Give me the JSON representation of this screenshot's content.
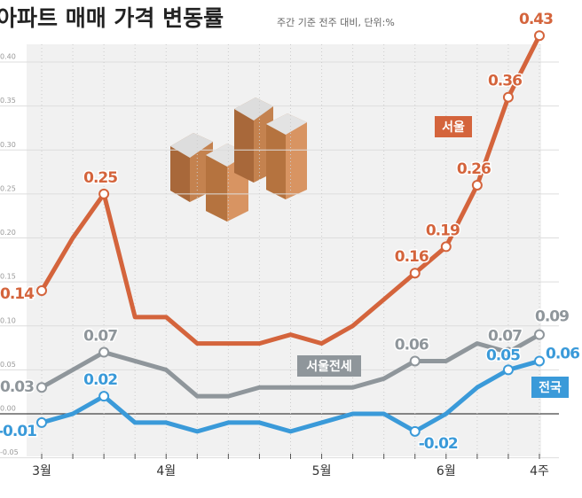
{
  "chart_data": {
    "type": "line",
    "title": "아파트 매매 가격 변동률",
    "subtitle": "주간 기준 전주 대비, 단위:%",
    "categories": [
      "3월",
      null,
      null,
      null,
      "4월",
      null,
      null,
      null,
      null,
      "5월",
      null,
      null,
      null,
      "6월",
      null,
      null,
      "4주"
    ],
    "ylim": [
      -0.05,
      0.43
    ],
    "yticks": [
      {
        "value": 0.4,
        "label": "0.40"
      },
      {
        "value": 0.35,
        "label": "0.35"
      },
      {
        "value": 0.3,
        "label": "0.30"
      },
      {
        "value": 0.25,
        "label": "0.25"
      },
      {
        "value": 0.2,
        "label": "0.20"
      },
      {
        "value": 0.15,
        "label": "0.15"
      },
      {
        "value": 0.1,
        "label": "0.10"
      },
      {
        "value": 0.05,
        "label": "0.05"
      },
      {
        "value": 0,
        "label": "0.00"
      },
      {
        "value": -0.05,
        "label": "-0.05"
      }
    ],
    "grid": true,
    "series": [
      {
        "name": "서울",
        "color": "#d4643c",
        "values": [
          0.14,
          0.2,
          0.25,
          0.11,
          0.11,
          0.08,
          0.08,
          0.08,
          0.09,
          0.08,
          0.1,
          0.13,
          0.16,
          0.19,
          0.26,
          0.36,
          0.43
        ],
        "value_labels": [
          "0.14",
          null,
          "0.25",
          null,
          null,
          null,
          null,
          null,
          null,
          null,
          null,
          null,
          "0.16",
          "0.19",
          "0.26",
          "0.36",
          "0.43"
        ]
      },
      {
        "name": "서울전세",
        "color": "#8f969b",
        "values": [
          0.03,
          0.05,
          0.07,
          0.06,
          0.05,
          0.02,
          0.02,
          0.03,
          0.03,
          0.03,
          0.03,
          0.04,
          0.06,
          0.06,
          0.08,
          0.07,
          0.09
        ],
        "value_labels": [
          "0.03",
          null,
          "0.07",
          null,
          null,
          null,
          null,
          null,
          null,
          null,
          null,
          null,
          "0.06",
          null,
          null,
          "0.07",
          "0.09"
        ]
      },
      {
        "name": "전국",
        "color": "#3a9ad9",
        "values": [
          -0.01,
          0,
          0.02,
          -0.01,
          -0.01,
          -0.02,
          -0.01,
          -0.01,
          -0.02,
          -0.01,
          0,
          0,
          -0.02,
          0,
          0.03,
          0.05,
          0.06
        ],
        "value_labels": [
          "-0.01",
          null,
          "0.02",
          null,
          null,
          null,
          null,
          null,
          null,
          null,
          null,
          null,
          "-0.02",
          null,
          null,
          "0.05",
          "0.06"
        ]
      }
    ]
  }
}
